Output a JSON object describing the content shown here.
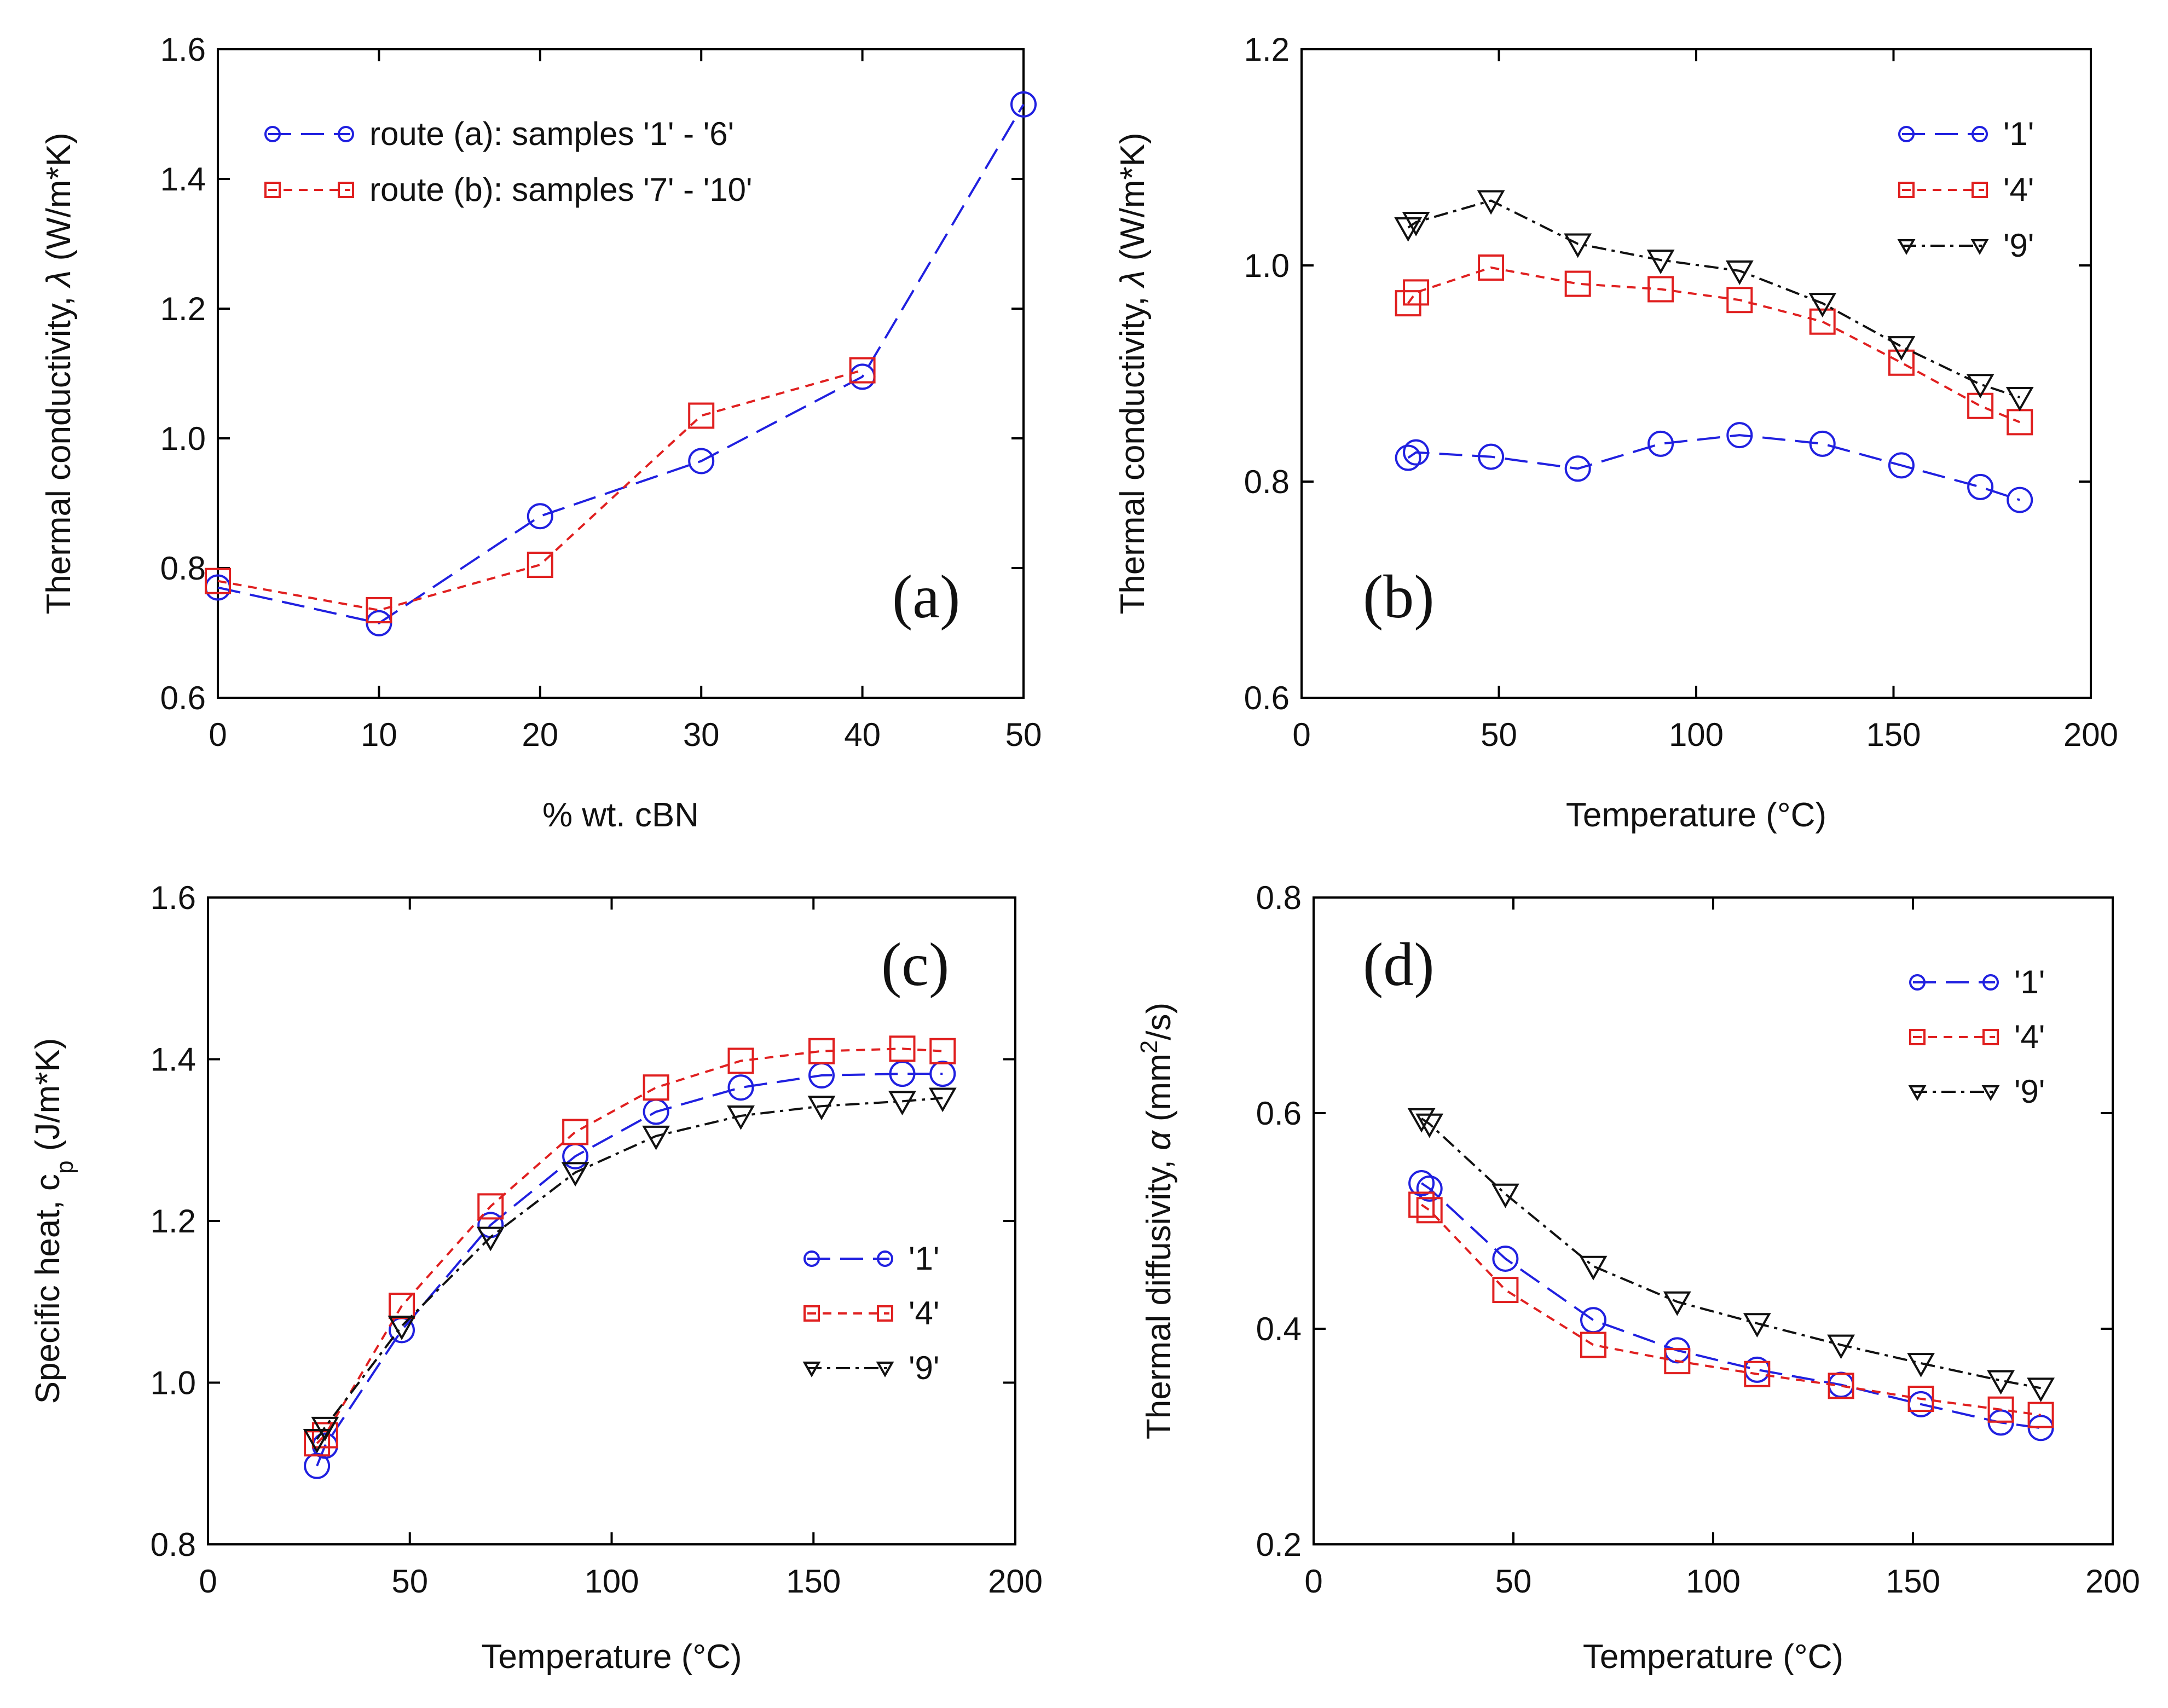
{
  "figure": {
    "panels": [
      {
        "id": "a",
        "panel_label": "(a)",
        "xlabel": "% wt. cBN",
        "ylabel_parts": [
          "Thermal conductivity, ",
          "λ",
          " (W/m*K)"
        ],
        "xticks": [
          "0",
          "10",
          "20",
          "30",
          "40",
          "50"
        ],
        "yticks": [
          "0.6",
          "0.8",
          "1.0",
          "1.2",
          "1.4",
          "1.6"
        ]
      },
      {
        "id": "b",
        "panel_label": "(b)",
        "xlabel": "Temperature (°C)",
        "ylabel_parts": [
          "Thermal conductivity, ",
          "λ",
          " (W/m*K)"
        ],
        "xticks": [
          "0",
          "50",
          "100",
          "150",
          "200"
        ],
        "yticks": [
          "0.6",
          "0.8",
          "1.0",
          "1.2"
        ]
      },
      {
        "id": "c",
        "panel_label": "(c)",
        "xlabel": "Temperature (°C)",
        "ylabel_parts": [
          "Specific heat, c",
          "p",
          " (J/m*K)"
        ],
        "xticks": [
          "0",
          "50",
          "100",
          "150",
          "200"
        ],
        "yticks": [
          "0.8",
          "1.0",
          "1.2",
          "1.4",
          "1.6"
        ]
      },
      {
        "id": "d",
        "panel_label": "(d)",
        "xlabel": "Temperature (°C)",
        "ylabel_parts": [
          "Thermal diffusivity, ",
          "α",
          " (mm",
          "2",
          "/s)"
        ],
        "xticks": [
          "0",
          "50",
          "100",
          "150",
          "200"
        ],
        "yticks": [
          "0.2",
          "0.4",
          "0.6",
          "0.8"
        ]
      }
    ]
  },
  "chart_data": [
    {
      "type": "line",
      "panel": "a",
      "title": "(a)",
      "xlabel": "% wt. cBN",
      "ylabel": "Thermal conductivity, λ (W/m*K)",
      "xlim": [
        0,
        50
      ],
      "ylim": [
        0.6,
        1.6
      ],
      "legend_position": "top-left",
      "series": [
        {
          "name": "route (a): samples '1' - '6'",
          "color": "#2020e0",
          "marker": "circle",
          "dash": "long-dash",
          "x": [
            0,
            10,
            20,
            30,
            40,
            50
          ],
          "y": [
            0.77,
            0.715,
            0.88,
            0.965,
            1.095,
            1.515
          ]
        },
        {
          "name": "route (b): samples '7' - '10'",
          "color": "#e02020",
          "marker": "square",
          "dash": "short-dash",
          "x": [
            0,
            10,
            20,
            30,
            40
          ],
          "y": [
            0.78,
            0.735,
            0.805,
            1.035,
            1.105
          ]
        }
      ]
    },
    {
      "type": "line",
      "panel": "b",
      "title": "(b)",
      "xlabel": "Temperature (°C)",
      "ylabel": "Thermal conductivity, λ (W/m*K)",
      "xlim": [
        0,
        200
      ],
      "ylim": [
        0.6,
        1.2
      ],
      "legend_position": "top-right",
      "series": [
        {
          "name": "'1'",
          "color": "#2020e0",
          "marker": "circle",
          "dash": "long-dash",
          "x": [
            27,
            29,
            48,
            70,
            91,
            111,
            132,
            152,
            172,
            182
          ],
          "y": [
            0.822,
            0.827,
            0.823,
            0.812,
            0.835,
            0.843,
            0.835,
            0.815,
            0.795,
            0.783
          ]
        },
        {
          "name": "'4'",
          "color": "#e02020",
          "marker": "square",
          "dash": "short-dash",
          "x": [
            27,
            29,
            48,
            70,
            91,
            111,
            132,
            152,
            172,
            182
          ],
          "y": [
            0.965,
            0.975,
            0.998,
            0.983,
            0.978,
            0.968,
            0.948,
            0.91,
            0.87,
            0.855
          ]
        },
        {
          "name": "'9'",
          "color": "#111111",
          "marker": "triangle-down",
          "dash": "mixed",
          "x": [
            27,
            29,
            48,
            70,
            91,
            111,
            132,
            152,
            172,
            182
          ],
          "y": [
            1.035,
            1.04,
            1.06,
            1.02,
            1.005,
            0.995,
            0.965,
            0.925,
            0.89,
            0.878
          ]
        }
      ]
    },
    {
      "type": "line",
      "panel": "c",
      "title": "(c)",
      "xlabel": "Temperature (°C)",
      "ylabel": "Specific heat, cp (J/m*K)",
      "xlim": [
        0,
        200
      ],
      "ylim": [
        0.8,
        1.6
      ],
      "legend_position": "center-right",
      "series": [
        {
          "name": "'1'",
          "color": "#2020e0",
          "marker": "circle",
          "dash": "long-dash",
          "x": [
            27,
            29,
            48,
            70,
            91,
            111,
            132,
            152,
            172,
            182
          ],
          "y": [
            0.897,
            0.922,
            1.065,
            1.195,
            1.28,
            1.335,
            1.365,
            1.38,
            1.382,
            1.382
          ]
        },
        {
          "name": "'4'",
          "color": "#e02020",
          "marker": "square",
          "dash": "short-dash",
          "x": [
            27,
            29,
            48,
            70,
            91,
            111,
            132,
            152,
            172,
            182
          ],
          "y": [
            0.925,
            0.935,
            1.095,
            1.218,
            1.31,
            1.365,
            1.398,
            1.41,
            1.413,
            1.41
          ]
        },
        {
          "name": "'9'",
          "color": "#111111",
          "marker": "triangle-down",
          "dash": "mixed",
          "x": [
            27,
            29,
            48,
            70,
            91,
            111,
            132,
            152,
            172,
            182
          ],
          "y": [
            0.93,
            0.945,
            1.07,
            1.18,
            1.26,
            1.305,
            1.33,
            1.342,
            1.348,
            1.352
          ]
        }
      ]
    },
    {
      "type": "line",
      "panel": "d",
      "title": "(d)",
      "xlabel": "Temperature (°C)",
      "ylabel": "Thermal diffusivity, α (mm2/s)",
      "xlim": [
        0,
        200
      ],
      "ylim": [
        0.2,
        0.8
      ],
      "legend_position": "top-right",
      "series": [
        {
          "name": "'1'",
          "color": "#2020e0",
          "marker": "circle",
          "dash": "long-dash",
          "x": [
            27,
            29,
            48,
            70,
            91,
            111,
            132,
            152,
            172,
            182
          ],
          "y": [
            0.535,
            0.53,
            0.465,
            0.408,
            0.38,
            0.362,
            0.348,
            0.33,
            0.313,
            0.308
          ]
        },
        {
          "name": "'4'",
          "color": "#e02020",
          "marker": "square",
          "dash": "short-dash",
          "x": [
            27,
            29,
            48,
            70,
            91,
            111,
            132,
            152,
            172,
            182
          ],
          "y": [
            0.515,
            0.51,
            0.436,
            0.385,
            0.37,
            0.358,
            0.347,
            0.335,
            0.325,
            0.32
          ]
        },
        {
          "name": "'9'",
          "color": "#111111",
          "marker": "triangle-down",
          "dash": "mixed",
          "x": [
            27,
            29,
            48,
            70,
            91,
            111,
            132,
            152,
            172,
            182
          ],
          "y": [
            0.595,
            0.59,
            0.525,
            0.458,
            0.425,
            0.405,
            0.385,
            0.368,
            0.352,
            0.345
          ]
        }
      ]
    }
  ]
}
